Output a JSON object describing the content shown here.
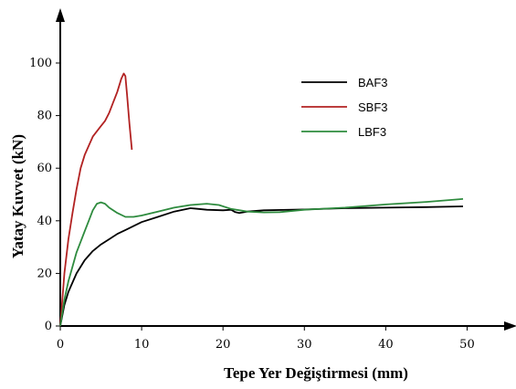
{
  "chart_data": {
    "type": "line",
    "title": "",
    "xlabel": "Tepe Yer Değiştirmesi (mm)",
    "ylabel": "Yatay Kuvvet (kN)",
    "xlim": [
      0,
      55
    ],
    "ylim": [
      0,
      100
    ],
    "x_ticks": [
      "0",
      "10",
      "20",
      "30",
      "40",
      "50"
    ],
    "y_ticks": [
      "0",
      "20",
      "40",
      "60",
      "80",
      "100"
    ],
    "grid": false,
    "legend_position": "top-right",
    "series": [
      {
        "name": "BAF3",
        "color": "#000000",
        "points": [
          [
            0,
            0
          ],
          [
            0.5,
            8
          ],
          [
            1,
            13
          ],
          [
            2,
            20
          ],
          [
            3,
            25
          ],
          [
            4,
            28.5
          ],
          [
            5,
            31
          ],
          [
            6,
            33
          ],
          [
            7,
            35
          ],
          [
            8,
            36.5
          ],
          [
            9,
            38
          ],
          [
            10,
            39.5
          ],
          [
            12,
            41.5
          ],
          [
            14,
            43.5
          ],
          [
            16,
            44.8
          ],
          [
            17,
            44.5
          ],
          [
            18,
            44.2
          ],
          [
            20,
            44
          ],
          [
            21,
            44.2
          ],
          [
            21.5,
            43.3
          ],
          [
            22,
            43
          ],
          [
            23,
            43.5
          ],
          [
            25,
            44
          ],
          [
            30,
            44.3
          ],
          [
            35,
            44.8
          ],
          [
            40,
            45
          ],
          [
            45,
            45.2
          ],
          [
            49.5,
            45.5
          ]
        ]
      },
      {
        "name": "SBF3",
        "color": "#b22222",
        "points": [
          [
            0,
            0
          ],
          [
            0.5,
            20
          ],
          [
            1,
            33
          ],
          [
            1.5,
            43
          ],
          [
            2,
            52
          ],
          [
            2.5,
            60
          ],
          [
            3,
            65
          ],
          [
            4,
            72
          ],
          [
            5,
            76
          ],
          [
            5.5,
            78
          ],
          [
            6,
            81
          ],
          [
            6.5,
            85
          ],
          [
            7,
            89
          ],
          [
            7.5,
            94
          ],
          [
            7.8,
            96
          ],
          [
            8,
            95
          ],
          [
            8.2,
            88
          ],
          [
            8.5,
            77
          ],
          [
            8.8,
            67
          ]
        ]
      },
      {
        "name": "LBF3",
        "color": "#2e8b3e",
        "points": [
          [
            0,
            0
          ],
          [
            0.5,
            10
          ],
          [
            1,
            17
          ],
          [
            2,
            28
          ],
          [
            3,
            36
          ],
          [
            3.5,
            40
          ],
          [
            4,
            44
          ],
          [
            4.5,
            46.5
          ],
          [
            5,
            47
          ],
          [
            5.5,
            46.5
          ],
          [
            6,
            45
          ],
          [
            7,
            43
          ],
          [
            8,
            41.5
          ],
          [
            9,
            41.5
          ],
          [
            10,
            42
          ],
          [
            12,
            43.5
          ],
          [
            14,
            45
          ],
          [
            16,
            46
          ],
          [
            18,
            46.5
          ],
          [
            19.5,
            46
          ],
          [
            21,
            44.5
          ],
          [
            23,
            43.5
          ],
          [
            25,
            43.2
          ],
          [
            27,
            43.3
          ],
          [
            30,
            44.2
          ],
          [
            35,
            45
          ],
          [
            40,
            46.2
          ],
          [
            45,
            47.2
          ],
          [
            49.5,
            48.3
          ]
        ]
      }
    ]
  }
}
